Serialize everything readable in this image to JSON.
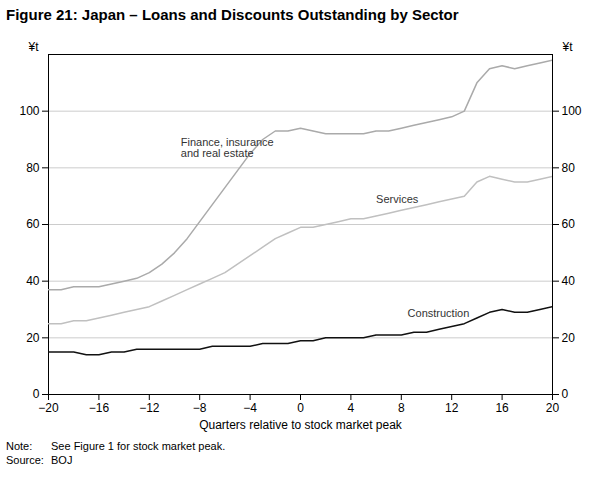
{
  "chart_data": {
    "type": "line",
    "title": "Figure 21: Japan – Loans and Discounts Outstanding by Sector",
    "xlabel": "Quarters relative to stock market peak",
    "ylabel": "¥t",
    "y2label": "¥t",
    "x": [
      -20,
      -19,
      -18,
      -17,
      -16,
      -15,
      -14,
      -13,
      -12,
      -11,
      -10,
      -9,
      -8,
      -7,
      -6,
      -5,
      -4,
      -3,
      -2,
      -1,
      0,
      1,
      2,
      3,
      4,
      5,
      6,
      7,
      8,
      9,
      10,
      11,
      12,
      13,
      14,
      15,
      16,
      17,
      18,
      19,
      20
    ],
    "series": [
      {
        "name": "Finance, insurance\nand real estate",
        "color": "#aaaaaa",
        "values": [
          37,
          37,
          38,
          38,
          38,
          39,
          40,
          41,
          43,
          46,
          50,
          55,
          61,
          67,
          73,
          79,
          85,
          90,
          93,
          93,
          94,
          93,
          92,
          92,
          92,
          92,
          93,
          93,
          94,
          95,
          96,
          97,
          98,
          100,
          110,
          115,
          116,
          115,
          116,
          117,
          118
        ]
      },
      {
        "name": "Services",
        "color": "#c0c0c0",
        "values": [
          25,
          25,
          26,
          26,
          27,
          28,
          29,
          30,
          31,
          33,
          35,
          37,
          39,
          41,
          43,
          46,
          49,
          52,
          55,
          57,
          59,
          59,
          60,
          61,
          62,
          62,
          63,
          64,
          65,
          66,
          67,
          68,
          69,
          70,
          75,
          77,
          76,
          75,
          75,
          76,
          77
        ]
      },
      {
        "name": "Construction",
        "color": "#111111",
        "values": [
          15,
          15,
          15,
          14,
          14,
          15,
          15,
          16,
          16,
          16,
          16,
          16,
          16,
          17,
          17,
          17,
          17,
          18,
          18,
          18,
          19,
          19,
          20,
          20,
          20,
          20,
          21,
          21,
          21,
          22,
          22,
          23,
          24,
          25,
          27,
          29,
          30,
          29,
          29,
          30,
          31
        ]
      }
    ],
    "xlim": [
      -20,
      20
    ],
    "xticks": [
      -20,
      -16,
      -12,
      -8,
      -4,
      0,
      4,
      8,
      12,
      16,
      20
    ],
    "ylim": [
      0,
      120
    ],
    "yticks": [
      0,
      20,
      40,
      60,
      80,
      100
    ],
    "y2lim": [
      0,
      120
    ],
    "y2ticks": [
      0,
      20,
      40,
      60,
      80,
      100
    ],
    "grid": true,
    "annotations": [
      {
        "x": -9.5,
        "y": 87,
        "text": "Finance, insurance\nand real estate"
      },
      {
        "x": 6,
        "y": 69,
        "text": "Services"
      },
      {
        "x": 8.5,
        "y": 28.5,
        "text": "Construction"
      }
    ],
    "notes": [
      {
        "label": "Note:",
        "text": "See Figure 1 for stock market peak."
      },
      {
        "label": "Source:",
        "text": "BOJ"
      }
    ]
  }
}
